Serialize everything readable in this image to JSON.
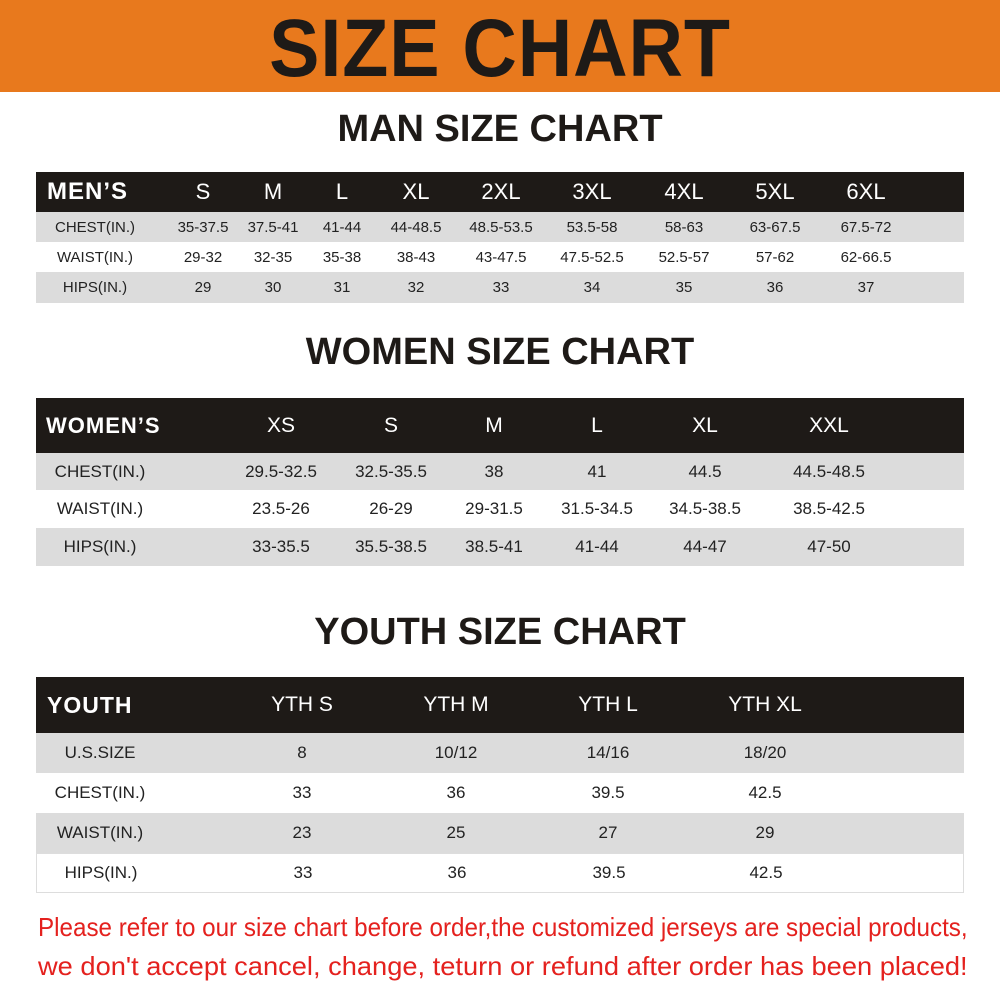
{
  "banner_title": "SIZE CHART",
  "men": {
    "title": "MAN SIZE CHART",
    "header_label": "MEN’S",
    "sizes": [
      "S",
      "M",
      "L",
      "XL",
      "2XL",
      "3XL",
      "4XL",
      "5XL",
      "6XL"
    ],
    "rows": [
      {
        "label": "CHEST(IN.)",
        "values": [
          "35-37.5",
          "37.5-41",
          "41-44",
          "44-48.5",
          "48.5-53.5",
          "53.5-58",
          "58-63",
          "63-67.5",
          "67.5-72"
        ]
      },
      {
        "label": "WAIST(IN.)",
        "values": [
          "29-32",
          "32-35",
          "35-38",
          "38-43",
          "43-47.5",
          "47.5-52.5",
          "52.5-57",
          "57-62",
          "62-66.5"
        ]
      },
      {
        "label": "HIPS(IN.)",
        "values": [
          "29",
          "30",
          "31",
          "32",
          "33",
          "34",
          "35",
          "36",
          "37"
        ]
      }
    ]
  },
  "women": {
    "title": "WOMEN SIZE CHART",
    "header_label": "WOMEN’S",
    "sizes": [
      "XS",
      "S",
      "M",
      "L",
      "XL",
      "XXL"
    ],
    "rows": [
      {
        "label": "CHEST(IN.)",
        "values": [
          "29.5-32.5",
          "32.5-35.5",
          "38",
          "41",
          "44.5",
          "44.5-48.5"
        ]
      },
      {
        "label": "WAIST(IN.)",
        "values": [
          "23.5-26",
          "26-29",
          "29-31.5",
          "31.5-34.5",
          "34.5-38.5",
          "38.5-42.5"
        ]
      },
      {
        "label": "HIPS(IN.)",
        "values": [
          "33-35.5",
          "35.5-38.5",
          "38.5-41",
          "41-44",
          "44-47",
          "47-50"
        ]
      }
    ]
  },
  "youth": {
    "title": "YOUTH SIZE CHART",
    "header_label": "YOUTH",
    "sizes": [
      "YTH S",
      "YTH M",
      "YTH L",
      "YTH XL"
    ],
    "rows": [
      {
        "label": "U.S.SIZE",
        "values": [
          "8",
          "10/12",
          "14/16",
          "18/20"
        ]
      },
      {
        "label": "CHEST(IN.)",
        "values": [
          "33",
          "36",
          "39.5",
          "42.5"
        ]
      },
      {
        "label": "WAIST(IN.)",
        "values": [
          "23",
          "25",
          "27",
          "29"
        ]
      },
      {
        "label": "HIPS(IN.)",
        "values": [
          "33",
          "36",
          "39.5",
          "42.5"
        ]
      }
    ]
  },
  "notice": {
    "line1": "Please refer to our size chart before order,the customized jerseys are special products,",
    "line2": "we don't accept cancel, change, teturn or refund after order has been placed!"
  },
  "colors": {
    "banner": "#e8791d",
    "header": "#1e1a17",
    "stripe": "#dcdcdc",
    "notice": "#e4211e"
  }
}
